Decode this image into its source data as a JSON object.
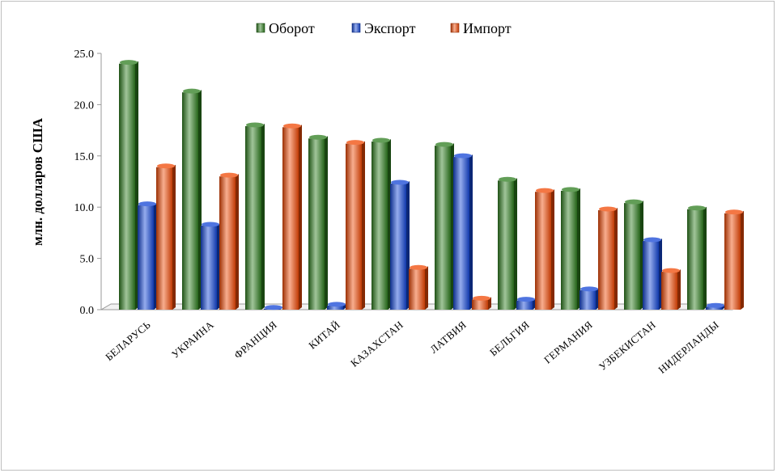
{
  "chart_data": {
    "type": "bar",
    "title": "",
    "xlabel": "",
    "ylabel": "млн. долларов США",
    "ylim": [
      0,
      25
    ],
    "yticks": [
      "0.0",
      "5.0",
      "10.0",
      "15.0",
      "20.0",
      "25.0"
    ],
    "grid": false,
    "legend_position": "top-center",
    "categories": [
      "БЕЛАРУСЬ",
      "УКРАИНА",
      "ФРАНЦИЯ",
      "КИТАЙ",
      "КАЗАХСТАН",
      "ЛАТВИЯ",
      "БЕЛЬГИЯ",
      "ГЕРМАНИЯ",
      "УЗБЕКИСТАН",
      "НИДЕРЛАНДЫ"
    ],
    "series": [
      {
        "name": "Оборот",
        "color": "#2e7d1f",
        "values": [
          24.0,
          21.2,
          17.9,
          16.7,
          16.4,
          16.0,
          12.6,
          11.6,
          10.4,
          9.8
        ]
      },
      {
        "name": "Экспорт",
        "color": "#1446d6",
        "values": [
          10.2,
          8.2,
          0.1,
          0.4,
          12.3,
          14.9,
          0.9,
          1.9,
          6.7,
          0.3
        ]
      },
      {
        "name": "Импорт",
        "color": "#f04a06",
        "values": [
          13.9,
          13.0,
          17.8,
          16.2,
          4.0,
          1.0,
          11.5,
          9.7,
          3.7,
          9.4
        ]
      }
    ]
  }
}
